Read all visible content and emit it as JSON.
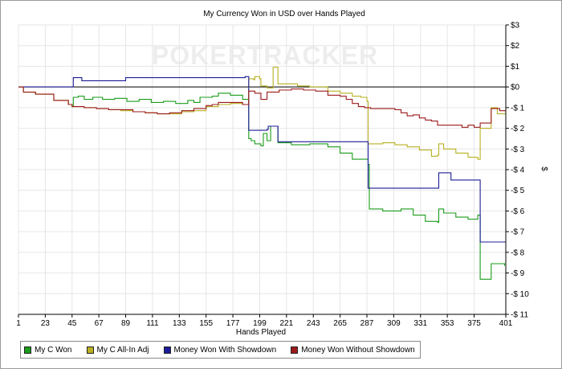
{
  "chart_data": {
    "type": "line",
    "title": "My Currency Won in USD over Hands Played",
    "xlabel": "Hands Played",
    "ylabel": "$",
    "x_ticks": [
      1,
      23,
      45,
      67,
      89,
      111,
      133,
      155,
      177,
      199,
      221,
      243,
      265,
      287,
      309,
      331,
      353,
      375,
      401
    ],
    "xlim": [
      1,
      401
    ],
    "y_ticks": [
      3,
      2,
      1,
      0,
      -1,
      -2,
      -3,
      -4,
      -5,
      -6,
      -7,
      -8,
      -9,
      -10,
      -11
    ],
    "y_tick_labels": [
      "$3",
      "$2",
      "$1",
      "$0",
      "-$ 1",
      "-$ 2",
      "-$ 3",
      "-$ 4",
      "-$ 5",
      "-$ 6",
      "-$ 7",
      "-$ 8",
      "-$ 9",
      "-$ 10",
      "-$ 11"
    ],
    "ylim": [
      -11,
      3
    ],
    "grid": true,
    "legend_position": "bottom-left",
    "watermark": "POKERTRACKER",
    "series": [
      {
        "name": "My C Won",
        "color": "#1a9c1a",
        "points": [
          [
            1,
            0
          ],
          [
            5,
            -0.25
          ],
          [
            15,
            -0.35
          ],
          [
            30,
            -0.65
          ],
          [
            42,
            -0.85
          ],
          [
            45,
            -0.95
          ],
          [
            46,
            -0.5
          ],
          [
            50,
            -0.45
          ],
          [
            55,
            -0.6
          ],
          [
            62,
            -0.5
          ],
          [
            70,
            -0.6
          ],
          [
            80,
            -0.55
          ],
          [
            90,
            -0.7
          ],
          [
            100,
            -0.6
          ],
          [
            110,
            -0.75
          ],
          [
            120,
            -0.7
          ],
          [
            130,
            -0.8
          ],
          [
            140,
            -0.65
          ],
          [
            145,
            -0.75
          ],
          [
            150,
            -0.5
          ],
          [
            160,
            -0.45
          ],
          [
            165,
            -0.3
          ],
          [
            175,
            -0.4
          ],
          [
            185,
            -0.6
          ],
          [
            190,
            -0.55
          ],
          [
            190,
            -2.5
          ],
          [
            192,
            -2.6
          ],
          [
            195,
            -2.75
          ],
          [
            200,
            -2.85
          ],
          [
            202,
            -2.25
          ],
          [
            205,
            -2.6
          ],
          [
            208,
            -1.9
          ],
          [
            212,
            -1.9
          ],
          [
            214,
            -2.7
          ],
          [
            225,
            -2.8
          ],
          [
            240,
            -2.75
          ],
          [
            255,
            -2.9
          ],
          [
            265,
            -3.2
          ],
          [
            275,
            -3.5
          ],
          [
            288,
            -3.75
          ],
          [
            289,
            -5.9
          ],
          [
            300,
            -6.0
          ],
          [
            315,
            -5.9
          ],
          [
            325,
            -6.2
          ],
          [
            335,
            -6.5
          ],
          [
            345,
            -6.55
          ],
          [
            346,
            -5.9
          ],
          [
            350,
            -6.1
          ],
          [
            360,
            -6.3
          ],
          [
            370,
            -6.4
          ],
          [
            378,
            -6.2
          ],
          [
            380,
            -9.3
          ],
          [
            388,
            -9.3
          ],
          [
            389,
            -8.55
          ],
          [
            397,
            -8.55
          ],
          [
            400,
            -8.65
          ]
        ]
      },
      {
        "name": "My C All-In Adj",
        "color": "#b8b022",
        "points": [
          [
            1,
            0
          ],
          [
            5,
            -0.25
          ],
          [
            15,
            -0.35
          ],
          [
            30,
            -0.65
          ],
          [
            42,
            -0.85
          ],
          [
            45,
            -0.95
          ],
          [
            55,
            -1.0
          ],
          [
            65,
            -1.05
          ],
          [
            75,
            -1.1
          ],
          [
            85,
            -1.15
          ],
          [
            95,
            -1.2
          ],
          [
            105,
            -1.25
          ],
          [
            115,
            -1.3
          ],
          [
            125,
            -1.3
          ],
          [
            135,
            -1.2
          ],
          [
            145,
            -1.15
          ],
          [
            155,
            -0.95
          ],
          [
            165,
            -0.85
          ],
          [
            175,
            -0.8
          ],
          [
            185,
            -0.85
          ],
          [
            190,
            -0.8
          ],
          [
            190,
            0.4
          ],
          [
            194,
            0.35
          ],
          [
            195,
            0.5
          ],
          [
            199,
            0.4
          ],
          [
            200,
            0.05
          ],
          [
            205,
            -0.05
          ],
          [
            210,
            0.95
          ],
          [
            213,
            0.95
          ],
          [
            214,
            0.15
          ],
          [
            230,
            0.05
          ],
          [
            240,
            0.0
          ],
          [
            255,
            -0.2
          ],
          [
            265,
            -0.3
          ],
          [
            275,
            -0.45
          ],
          [
            282,
            -0.5
          ],
          [
            287,
            -0.7
          ],
          [
            288,
            -2.75
          ],
          [
            300,
            -2.7
          ],
          [
            310,
            -2.8
          ],
          [
            320,
            -2.9
          ],
          [
            330,
            -3.05
          ],
          [
            340,
            -3.35
          ],
          [
            345,
            -3.3
          ],
          [
            346,
            -2.75
          ],
          [
            350,
            -3.0
          ],
          [
            360,
            -3.2
          ],
          [
            370,
            -3.4
          ],
          [
            378,
            -3.5
          ],
          [
            380,
            -2.0
          ],
          [
            388,
            -2.0
          ],
          [
            389,
            -1.0
          ],
          [
            393,
            -1.0
          ],
          [
            394,
            -1.3
          ],
          [
            401,
            -1.35
          ]
        ]
      },
      {
        "name": "Money Won With Showdown",
        "color": "#1c1c99",
        "points": [
          [
            1,
            0
          ],
          [
            45,
            0
          ],
          [
            46,
            0.45
          ],
          [
            52,
            0.45
          ],
          [
            53,
            0.3
          ],
          [
            75,
            0.3
          ],
          [
            88,
            0.3
          ],
          [
            89,
            0.45
          ],
          [
            186,
            0.45
          ],
          [
            187,
            0.5
          ],
          [
            190,
            0.45
          ],
          [
            190,
            -2.1
          ],
          [
            205,
            -2.05
          ],
          [
            206,
            -1.9
          ],
          [
            213,
            -1.9
          ],
          [
            214,
            -2.65
          ],
          [
            287,
            -2.65
          ],
          [
            288,
            -4.9
          ],
          [
            345,
            -4.9
          ],
          [
            346,
            -4.15
          ],
          [
            355,
            -4.15
          ],
          [
            356,
            -4.5
          ],
          [
            378,
            -4.5
          ],
          [
            380,
            -7.5
          ],
          [
            401,
            -7.5
          ]
        ]
      },
      {
        "name": "Money Won Without Showdown",
        "color": "#9c1a1a",
        "points": [
          [
            1,
            0
          ],
          [
            5,
            -0.25
          ],
          [
            15,
            -0.35
          ],
          [
            30,
            -0.65
          ],
          [
            42,
            -0.85
          ],
          [
            45,
            -0.95
          ],
          [
            55,
            -1.0
          ],
          [
            65,
            -1.05
          ],
          [
            75,
            -1.1
          ],
          [
            85,
            -1.1
          ],
          [
            95,
            -1.2
          ],
          [
            105,
            -1.25
          ],
          [
            115,
            -1.3
          ],
          [
            125,
            -1.25
          ],
          [
            135,
            -1.15
          ],
          [
            145,
            -1.05
          ],
          [
            155,
            -0.9
          ],
          [
            160,
            -0.85
          ],
          [
            165,
            -0.75
          ],
          [
            175,
            -0.75
          ],
          [
            185,
            -0.85
          ],
          [
            190,
            -0.85
          ],
          [
            190,
            -0.2
          ],
          [
            195,
            -0.3
          ],
          [
            200,
            -0.6
          ],
          [
            205,
            -0.25
          ],
          [
            215,
            -0.15
          ],
          [
            225,
            -0.1
          ],
          [
            235,
            -0.15
          ],
          [
            245,
            -0.2
          ],
          [
            255,
            -0.4
          ],
          [
            265,
            -0.45
          ],
          [
            270,
            -0.6
          ],
          [
            275,
            -0.8
          ],
          [
            280,
            -0.95
          ],
          [
            285,
            -1.0
          ],
          [
            290,
            -1.05
          ],
          [
            300,
            -1.05
          ],
          [
            310,
            -1.1
          ],
          [
            315,
            -1.25
          ],
          [
            320,
            -1.4
          ],
          [
            325,
            -1.35
          ],
          [
            330,
            -1.5
          ],
          [
            335,
            -1.6
          ],
          [
            340,
            -1.65
          ],
          [
            345,
            -1.85
          ],
          [
            355,
            -1.85
          ],
          [
            365,
            -1.95
          ],
          [
            370,
            -1.85
          ],
          [
            375,
            -1.95
          ],
          [
            378,
            -1.95
          ],
          [
            380,
            -1.75
          ],
          [
            388,
            -1.75
          ],
          [
            389,
            -1.05
          ],
          [
            395,
            -1.05
          ],
          [
            396,
            -1.15
          ],
          [
            401,
            -1.15
          ]
        ]
      }
    ]
  },
  "legend": [
    {
      "label": "My C Won",
      "color": "#1a9c1a"
    },
    {
      "label": "My C All-In Adj",
      "color": "#b8b022"
    },
    {
      "label": "Money Won With Showdown",
      "color": "#1c1c99"
    },
    {
      "label": "Money Won Without Showdown",
      "color": "#9c1a1a"
    }
  ]
}
